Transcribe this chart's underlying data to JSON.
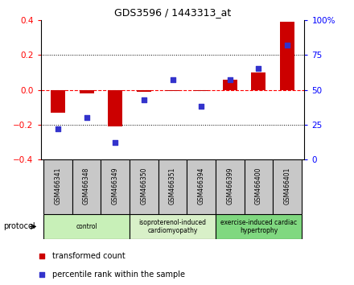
{
  "title": "GDS3596 / 1443313_at",
  "samples": [
    "GSM466341",
    "GSM466348",
    "GSM466349",
    "GSM466350",
    "GSM466351",
    "GSM466394",
    "GSM466399",
    "GSM466400",
    "GSM466401"
  ],
  "transformed_count": [
    -0.13,
    -0.02,
    -0.21,
    -0.01,
    -0.005,
    -0.005,
    0.06,
    0.1,
    0.39
  ],
  "percentile_rank": [
    22,
    30,
    12,
    43,
    57,
    38,
    57,
    65,
    82
  ],
  "bar_color": "#cc0000",
  "dot_color": "#3333cc",
  "ylim": [
    -0.4,
    0.4
  ],
  "y2lim": [
    0,
    100
  ],
  "yticks": [
    -0.4,
    -0.2,
    0.0,
    0.2,
    0.4
  ],
  "y2ticks": [
    0,
    25,
    50,
    75,
    100
  ],
  "y2ticklabels": [
    "0",
    "25",
    "50",
    "75",
    "100%"
  ],
  "grid_values": [
    -0.2,
    0.2
  ],
  "zero_line": 0.0,
  "legend_red": "transformed count",
  "legend_blue": "percentile rank within the sample",
  "protocol_label": "protocol",
  "bar_width": 0.5,
  "sample_box_color": "#c8c8c8",
  "groups_info": [
    {
      "start": 0,
      "end": 2,
      "label": "control",
      "color": "#c8f0b8"
    },
    {
      "start": 3,
      "end": 5,
      "label": "isoproterenol-induced\ncardiomyopathy",
      "color": "#d8f0c8"
    },
    {
      "start": 6,
      "end": 8,
      "label": "exercise-induced cardiac\nhypertrophy",
      "color": "#80d880"
    }
  ]
}
